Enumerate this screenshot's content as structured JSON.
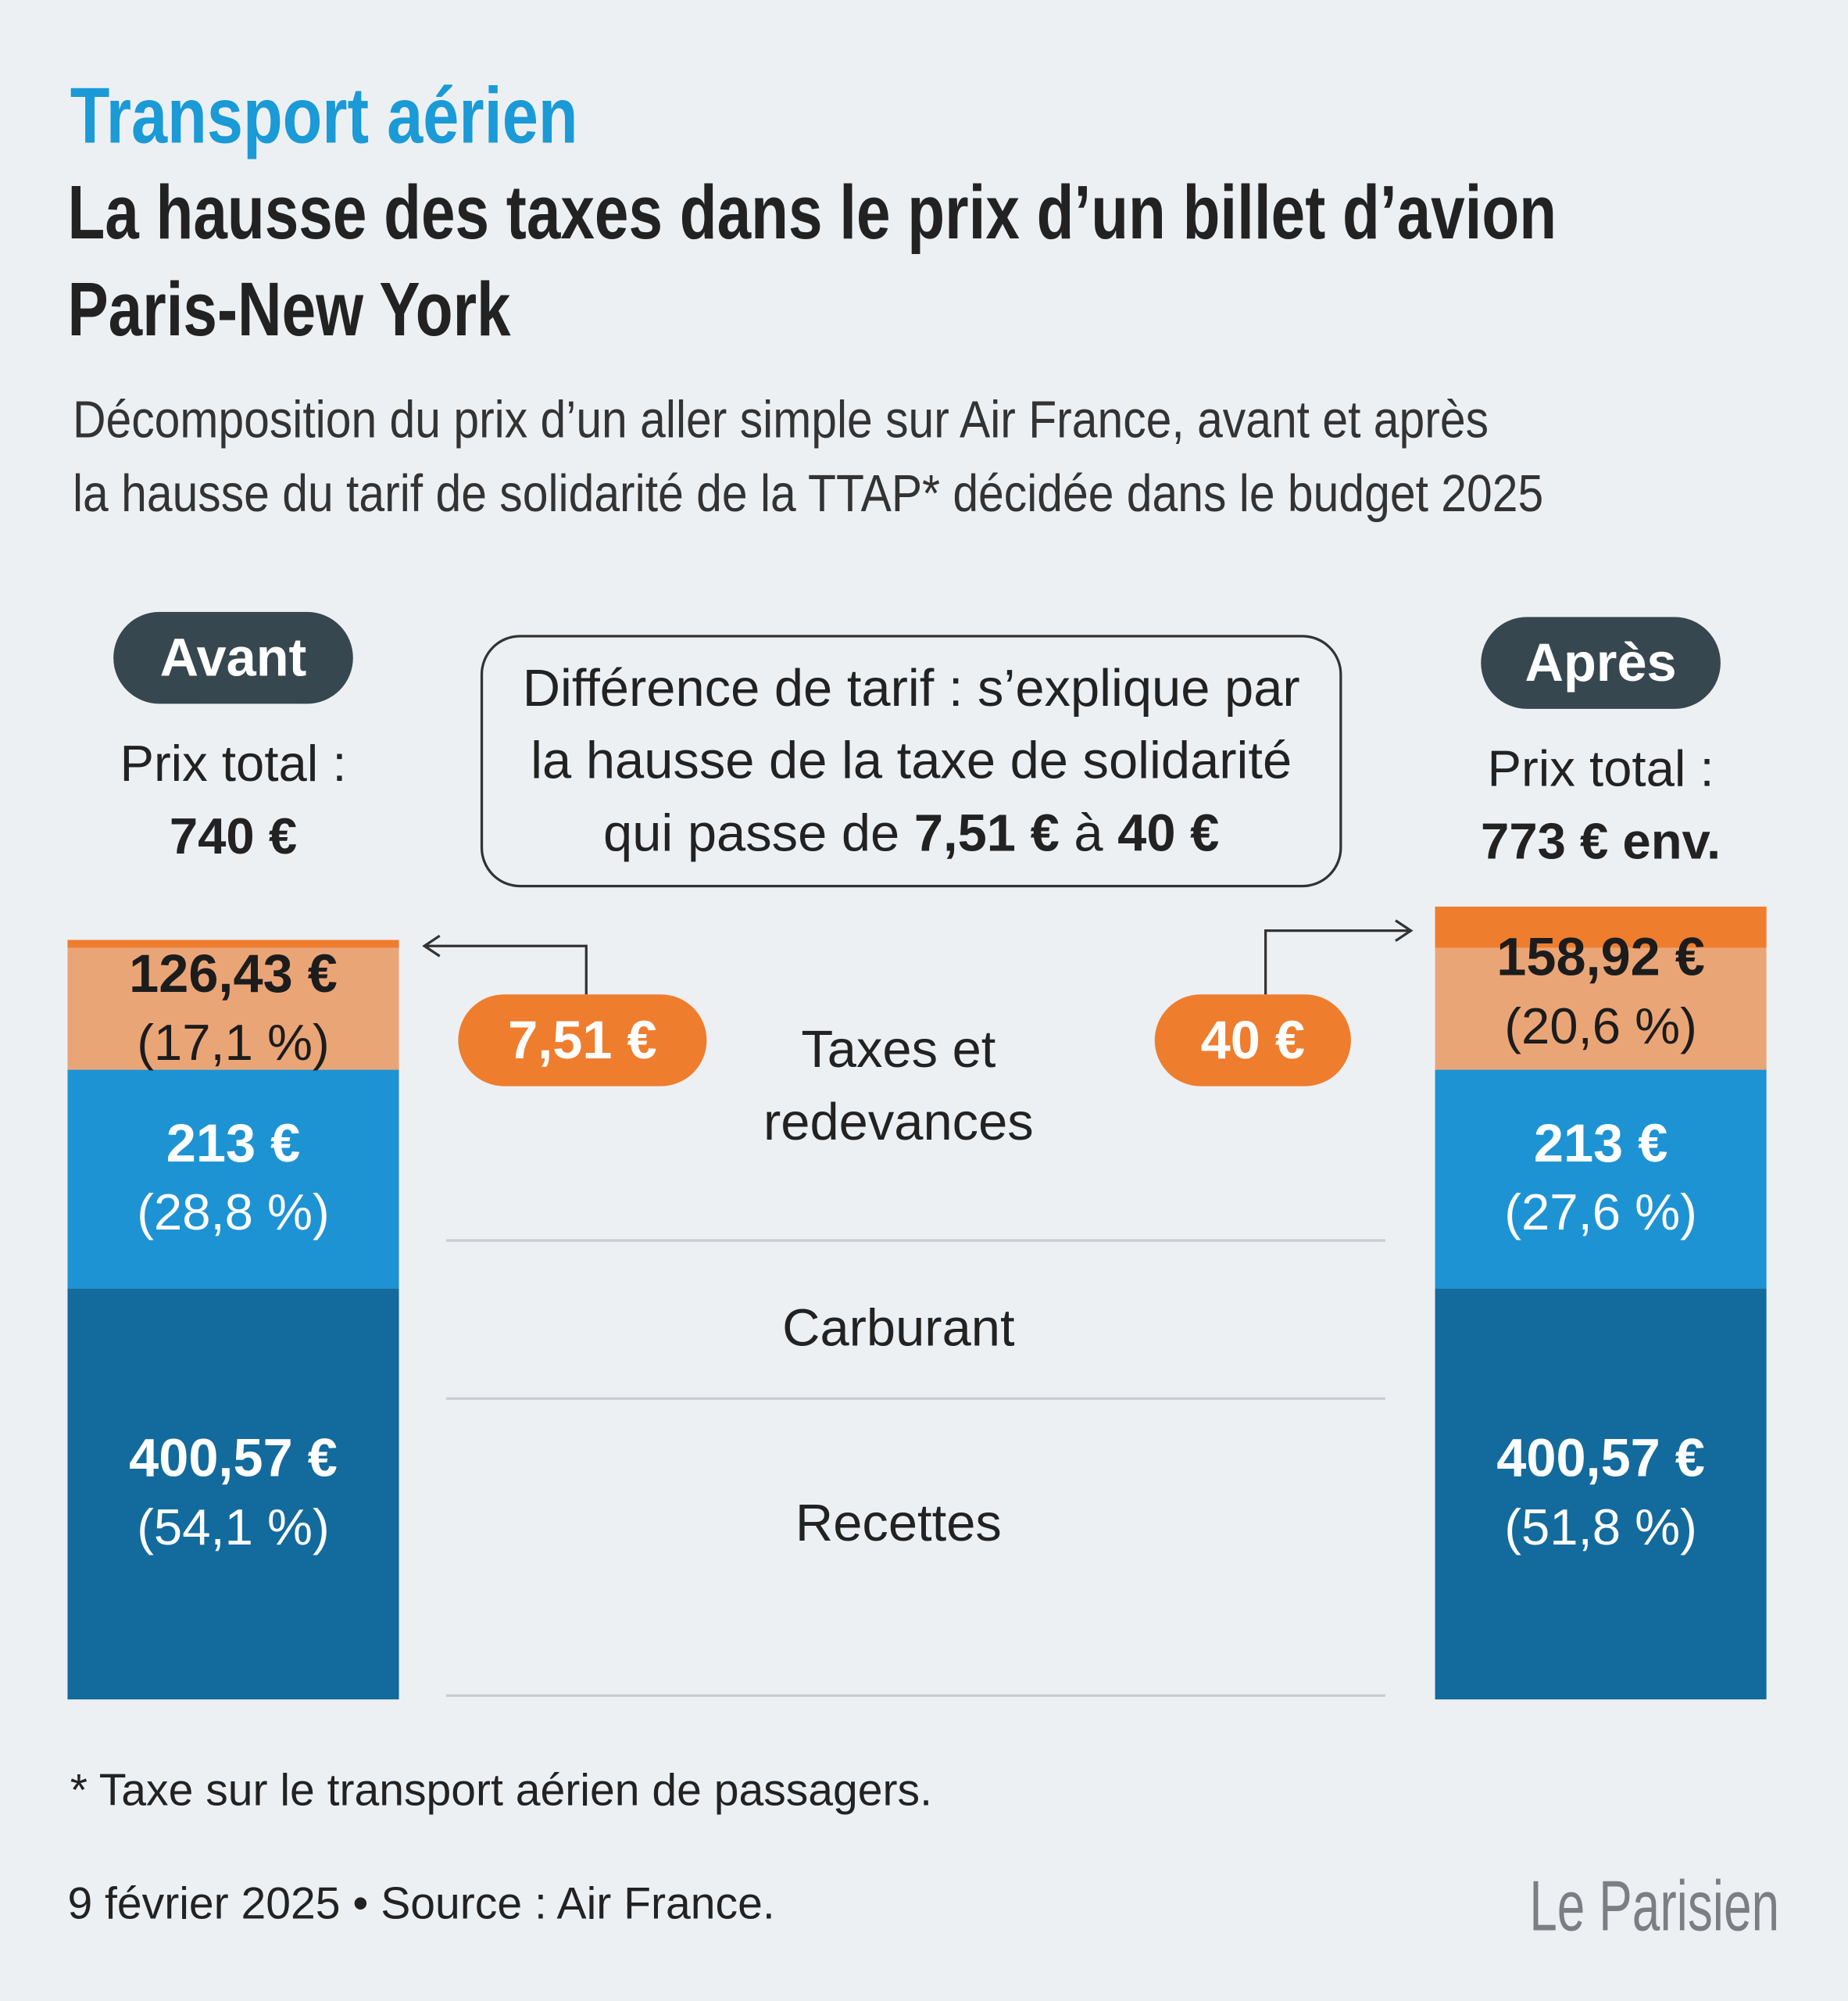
{
  "kicker": "Transport aérien",
  "title": [
    "La hausse des taxes dans le prix d’un billet d’avion",
    "Paris-New York"
  ],
  "subtitle": [
    "Décomposition du prix d’un aller simple sur Air France, avant et après",
    "la hausse du tarif de solidarité de la TTAP* décidée dans le budget 2025"
  ],
  "callout": [
    [
      "Différence de tarif : s’explique par"
    ],
    [
      "la hausse de la taxe de solidarité"
    ],
    [
      "qui passe de ",
      "7,51 €",
      " à ",
      "40 €"
    ]
  ],
  "chart_data": {
    "type": "stacked-bar",
    "categories": [
      "Avant",
      "Après"
    ],
    "total_label": "Prix total :",
    "totals": [
      "740 €",
      "773 € env."
    ],
    "series": [
      {
        "name": "Recettes",
        "color": "#136a9c",
        "text_color": "#ffffff",
        "values": [
          400.57,
          400.57
        ],
        "value_labels": [
          "400,57 €",
          "400,57 €"
        ],
        "share_labels": [
          "(54,1 %)",
          "(51,8 %)"
        ]
      },
      {
        "name": "Carburant",
        "color": "#1e93d3",
        "text_color": "#ffffff",
        "values": [
          213,
          213
        ],
        "value_labels": [
          "213 €",
          "213 €"
        ],
        "share_labels": [
          "(28,8 %)",
          "(27,6 %)"
        ]
      },
      {
        "name": "Taxes et redevances",
        "color": "#eaa577",
        "text_color": "#1c1c1c",
        "values": [
          126.43,
          158.92
        ],
        "value_labels": [
          "126,43 €",
          "158,92 €"
        ],
        "share_labels": [
          "(17,1 %)",
          "(20,6 %)"
        ]
      }
    ],
    "solidarity_tax": {
      "color": "#ef7d2e",
      "values": [
        7.51,
        40
      ],
      "value_labels": [
        "7,51 €",
        "40 €"
      ]
    }
  },
  "footnote": "* Taxe sur le transport aérien de passagers.",
  "source": "9 février 2025 • Source : Air France.",
  "logo": "Le Parisien"
}
